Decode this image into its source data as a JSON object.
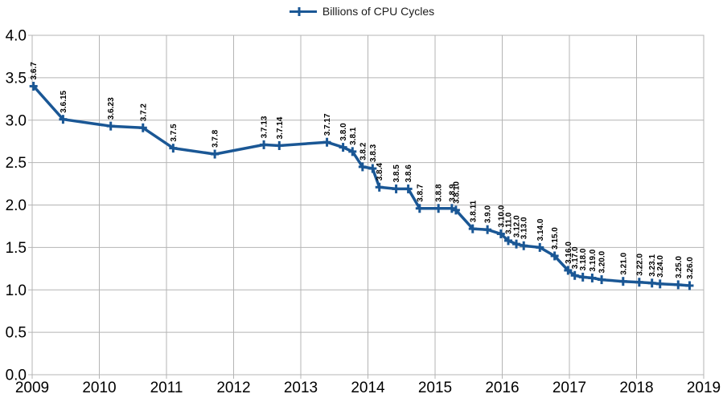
{
  "colors": {
    "series_line": "#1a5795",
    "grid": "#b4b4b4",
    "axis_text": "#000000",
    "point_label_text": "#000000",
    "background": "#ffffff"
  },
  "legend": {
    "position": "top",
    "marker_icon": "plus-on-line-icon"
  },
  "chart_data": {
    "type": "line",
    "title": "",
    "xlabel": "",
    "ylabel": "",
    "grid": true,
    "legend_position": "top",
    "marker": "plus",
    "point_label_rotation": 90,
    "xlim": [
      2009,
      2019
    ],
    "ylim": [
      0.0,
      4.0
    ],
    "x_ticks": [
      "2009",
      "2010",
      "2011",
      "2012",
      "2013",
      "2014",
      "2015",
      "2016",
      "2017",
      "2018",
      "2019"
    ],
    "y_ticks": [
      "0.0",
      "0.5",
      "1.0",
      "1.5",
      "2.0",
      "2.5",
      "3.0",
      "3.5",
      "4.0"
    ],
    "series": [
      {
        "name": "Billions of CPU Cycles",
        "color": "#1a5795",
        "points": [
          {
            "label": "3.6.7",
            "x": 2009.02,
            "y": 3.4
          },
          {
            "label": "3.6.15",
            "x": 2009.46,
            "y": 3.01
          },
          {
            "label": "3.6.23",
            "x": 2010.17,
            "y": 2.93
          },
          {
            "label": "3.7.2",
            "x": 2010.65,
            "y": 2.91
          },
          {
            "label": "3.7.5",
            "x": 2011.1,
            "y": 2.67
          },
          {
            "label": "3.7.8",
            "x": 2011.72,
            "y": 2.6
          },
          {
            "label": "3.7.13",
            "x": 2012.45,
            "y": 2.71
          },
          {
            "label": "3.7.14",
            "x": 2012.68,
            "y": 2.7
          },
          {
            "label": "3.7.17",
            "x": 2013.39,
            "y": 2.74
          },
          {
            "label": "3.8.0",
            "x": 2013.63,
            "y": 2.68
          },
          {
            "label": "3.8.1",
            "x": 2013.77,
            "y": 2.63
          },
          {
            "label": "3.8.2",
            "x": 2013.92,
            "y": 2.45
          },
          {
            "label": "3.8.3",
            "x": 2014.07,
            "y": 2.43
          },
          {
            "label": "3.8.4",
            "x": 2014.17,
            "y": 2.21
          },
          {
            "label": "3.8.5",
            "x": 2014.42,
            "y": 2.19
          },
          {
            "label": "3.8.6",
            "x": 2014.6,
            "y": 2.19
          },
          {
            "label": "3.8.7",
            "x": 2014.77,
            "y": 1.96
          },
          {
            "label": "3.8.8",
            "x": 2015.05,
            "y": 1.96
          },
          {
            "label": "3.8.9",
            "x": 2015.25,
            "y": 1.96
          },
          {
            "label": "3.8.10",
            "x": 2015.31,
            "y": 1.94
          },
          {
            "label": "3.8.11",
            "x": 2015.56,
            "y": 1.72
          },
          {
            "label": "3.9.0",
            "x": 2015.78,
            "y": 1.71
          },
          {
            "label": "3.10.0",
            "x": 2015.98,
            "y": 1.66
          },
          {
            "label": "3.11.0",
            "x": 2016.09,
            "y": 1.58
          },
          {
            "label": "3.12.0",
            "x": 2016.21,
            "y": 1.54
          },
          {
            "label": "3.13.0",
            "x": 2016.32,
            "y": 1.52
          },
          {
            "label": "3.14.0",
            "x": 2016.56,
            "y": 1.5
          },
          {
            "label": "3.15.0",
            "x": 2016.78,
            "y": 1.4
          },
          {
            "label": "3.16.0",
            "x": 2016.98,
            "y": 1.23
          },
          {
            "label": "3.17.0",
            "x": 2017.08,
            "y": 1.17
          },
          {
            "label": "3.18.0",
            "x": 2017.2,
            "y": 1.15
          },
          {
            "label": "3.19.0",
            "x": 2017.34,
            "y": 1.14
          },
          {
            "label": "3.20.0",
            "x": 2017.48,
            "y": 1.12
          },
          {
            "label": "3.21.0",
            "x": 2017.8,
            "y": 1.1
          },
          {
            "label": "3.22.0",
            "x": 2018.04,
            "y": 1.09
          },
          {
            "label": "3.23.1",
            "x": 2018.23,
            "y": 1.08
          },
          {
            "label": "3.24.0",
            "x": 2018.35,
            "y": 1.07
          },
          {
            "label": "3.25.0",
            "x": 2018.62,
            "y": 1.06
          },
          {
            "label": "3.26.0",
            "x": 2018.79,
            "y": 1.05
          }
        ]
      }
    ]
  }
}
